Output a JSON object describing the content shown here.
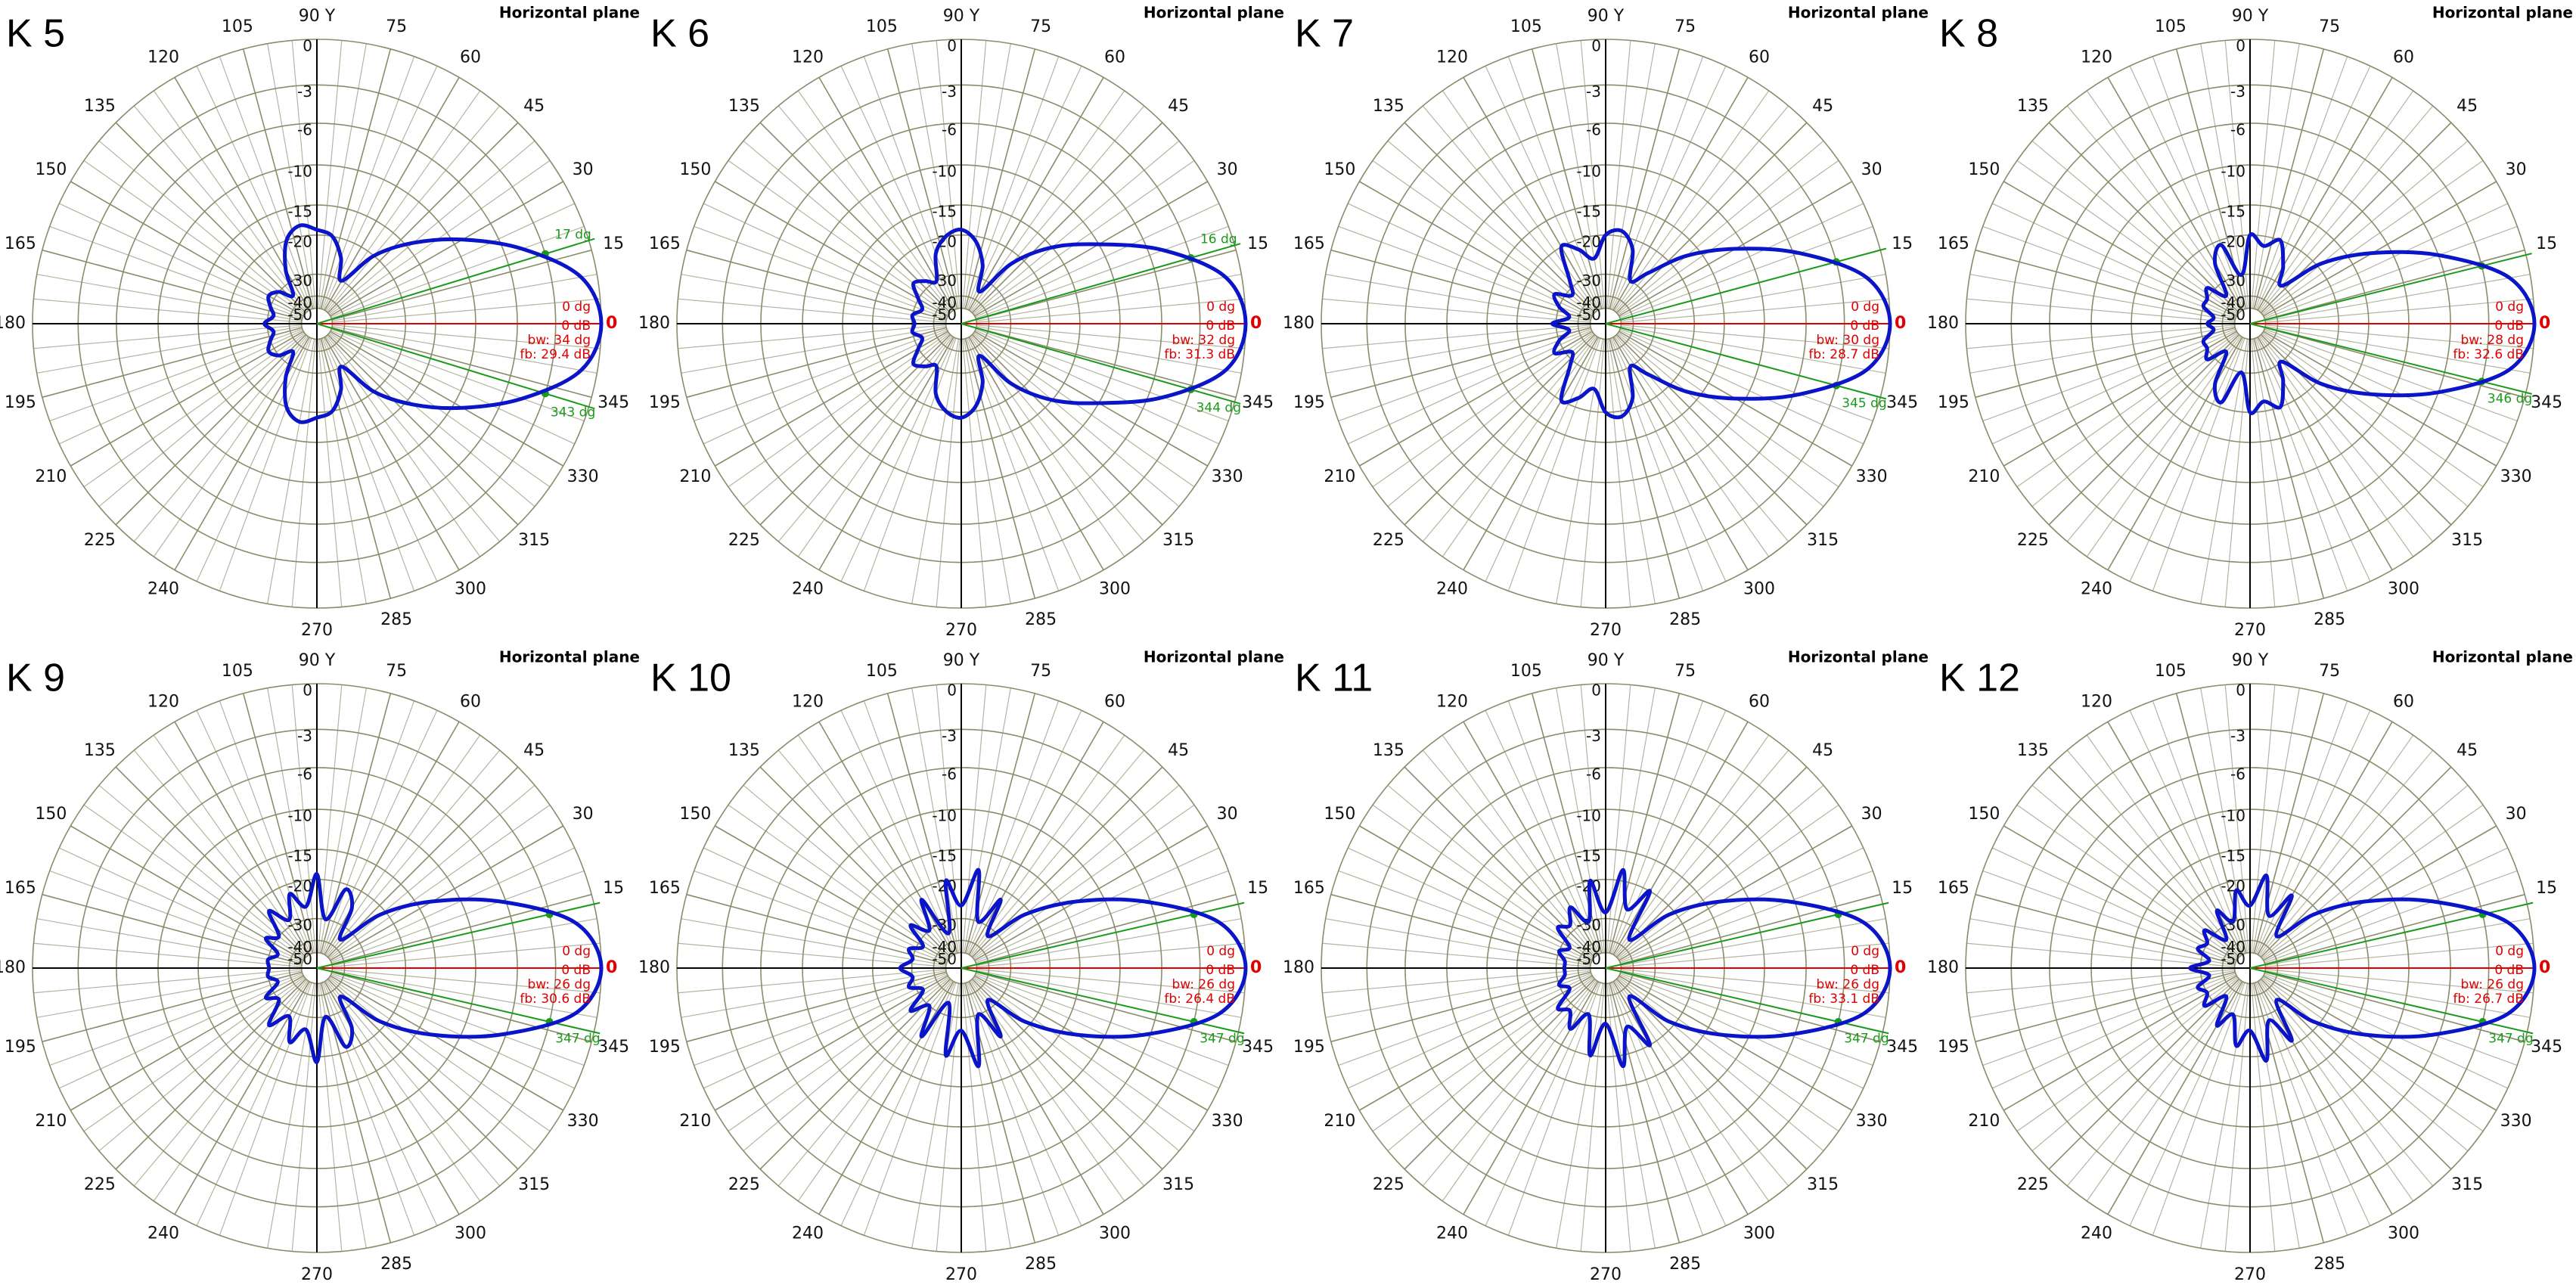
{
  "chart_data": [
    {
      "type": "polar",
      "title": "K 5",
      "subtitle": "Horizontal plane",
      "radial_scale": "arrl-log",
      "color": "#0a14c8",
      "theta": [
        0,
        10,
        20,
        30,
        40,
        50,
        60,
        70,
        80,
        90,
        100,
        110,
        120,
        130,
        140,
        150,
        160,
        170,
        180,
        190,
        200,
        210,
        220,
        230,
        240,
        250,
        260,
        270,
        280,
        290,
        300,
        310,
        320,
        330,
        340,
        350
      ],
      "values": [
        0,
        -1,
        -4.5,
        -9,
        -14,
        -20,
        -30,
        -24,
        -20,
        -19,
        -18,
        -20,
        -26,
        -35,
        -30,
        -28,
        -30,
        -32,
        -29,
        -32,
        -30,
        -28,
        -30,
        -35,
        -26,
        -20,
        -18,
        -19,
        -20,
        -24,
        -30,
        -20,
        -14,
        -9,
        -4.5,
        -1
      ],
      "rticks": [
        0,
        -3,
        -6,
        -10,
        -15,
        -20,
        -30,
        -40,
        -50
      ],
      "thetaticks": [
        {
          "value": 0,
          "label": "0"
        },
        15,
        30,
        45,
        60,
        75,
        {
          "value": 90,
          "label": "90 Y"
        },
        105,
        120,
        135,
        150,
        165,
        180,
        195,
        210,
        225,
        240,
        270,
        285,
        300,
        315,
        330,
        345
      ],
      "beam_edges": [
        17,
        343
      ],
      "beam_edge_labels": [
        "17 dg",
        "343 dg"
      ],
      "annotations": [
        "0 dg",
        "0 dB",
        "bw: 34 dg",
        "fb: 29.4 dB"
      ]
    },
    {
      "type": "polar",
      "title": "K 6",
      "subtitle": "Horizontal plane",
      "radial_scale": "arrl-log",
      "color": "#0a14c8",
      "theta": [
        0,
        10,
        20,
        30,
        40,
        50,
        60,
        70,
        80,
        90,
        100,
        110,
        120,
        130,
        140,
        150,
        160,
        170,
        180,
        190,
        200,
        210,
        220,
        230,
        240,
        250,
        260,
        270,
        280,
        290,
        300,
        310,
        320,
        330,
        340,
        350
      ],
      "values": [
        0,
        -1,
        -4.8,
        -10,
        -15,
        -22,
        -35,
        -26,
        -21,
        -19,
        -20,
        -23,
        -30,
        -28,
        -26,
        -30,
        -33,
        -30,
        -31,
        -30,
        -33,
        -30,
        -26,
        -28,
        -30,
        -23,
        -20,
        -19,
        -21,
        -26,
        -35,
        -22,
        -15,
        -10,
        -4.8,
        -1
      ],
      "rticks": [
        0,
        -3,
        -6,
        -10,
        -15,
        -20,
        -30,
        -40,
        -50
      ],
      "thetaticks": [
        {
          "value": 0,
          "label": "0"
        },
        15,
        30,
        45,
        60,
        75,
        {
          "value": 90,
          "label": "90 Y"
        },
        105,
        120,
        135,
        150,
        165,
        180,
        195,
        210,
        225,
        240,
        270,
        285,
        300,
        315,
        330,
        345
      ],
      "beam_edges": [
        16,
        344
      ],
      "beam_edge_labels": [
        "16 dg",
        "344 dg"
      ],
      "annotations": [
        "0 dg",
        "0 dB",
        "bw: 32 dg",
        "fb: 31.3 dB"
      ]
    },
    {
      "type": "polar",
      "title": "K 7",
      "subtitle": "Horizontal plane",
      "radial_scale": "arrl-log",
      "color": "#0a14c8",
      "theta": [
        0,
        10,
        20,
        30,
        40,
        50,
        60,
        70,
        80,
        90,
        100,
        110,
        120,
        130,
        140,
        150,
        160,
        170,
        180,
        190,
        200,
        210,
        220,
        230,
        240,
        250,
        260,
        270,
        280,
        290,
        300,
        310,
        320,
        330,
        340,
        350
      ],
      "values": [
        0,
        -1.2,
        -5.5,
        -11,
        -17,
        -25,
        -30,
        -22,
        -19,
        -20,
        -25,
        -22,
        -20,
        -28,
        -32,
        -27,
        -30,
        -35,
        -28.7,
        -35,
        -30,
        -27,
        -32,
        -28,
        -20,
        -22,
        -25,
        -20,
        -19,
        -22,
        -30,
        -25,
        -17,
        -11,
        -5.5,
        -1.2
      ],
      "rticks": [
        0,
        -3,
        -6,
        -10,
        -15,
        -20,
        -30,
        -40,
        -50
      ],
      "thetaticks": [
        {
          "value": 0,
          "label": "0"
        },
        15,
        30,
        45,
        60,
        75,
        {
          "value": 90,
          "label": "90 Y"
        },
        105,
        120,
        135,
        150,
        165,
        180,
        195,
        210,
        225,
        240,
        270,
        285,
        300,
        315,
        330,
        345
      ],
      "beam_edges": [
        15,
        345
      ],
      "beam_edge_labels": [
        null,
        "345 dg"
      ],
      "annotations": [
        "0 dg",
        "0 dB",
        "bw: 30 dg",
        "fb: 28.7 dB"
      ]
    },
    {
      "type": "polar",
      "title": "K 8",
      "subtitle": "Horizontal plane",
      "radial_scale": "arrl-log",
      "color": "#0a14c8",
      "theta": [
        0,
        10,
        20,
        30,
        40,
        50,
        60,
        70,
        80,
        90,
        100,
        110,
        120,
        130,
        140,
        150,
        160,
        170,
        180,
        190,
        200,
        210,
        220,
        230,
        240,
        250,
        260,
        270,
        280,
        290,
        300,
        310,
        320,
        330,
        340,
        350
      ],
      "values": [
        0,
        -1.3,
        -6,
        -12,
        -19,
        -30,
        -25,
        -20,
        -22,
        -20,
        -30,
        -21,
        -24,
        -35,
        -28,
        -30,
        -30,
        -35,
        -32.6,
        -35,
        -30,
        -30,
        -28,
        -35,
        -24,
        -21,
        -30,
        -20,
        -22,
        -20,
        -25,
        -30,
        -19,
        -12,
        -6,
        -1.3
      ],
      "rticks": [
        0,
        -3,
        -6,
        -10,
        -15,
        -20,
        -30,
        -40,
        -50
      ],
      "thetaticks": [
        {
          "value": 0,
          "label": "0"
        },
        15,
        30,
        45,
        60,
        75,
        {
          "value": 90,
          "label": "90 Y"
        },
        105,
        120,
        135,
        150,
        165,
        180,
        195,
        210,
        225,
        240,
        270,
        285,
        300,
        315,
        330,
        345
      ],
      "beam_edges": [
        14,
        346
      ],
      "beam_edge_labels": [
        null,
        "346 dg"
      ],
      "annotations": [
        "0 dg",
        "0 dB",
        "bw: 28 dg",
        "fb: 32.6 dB"
      ]
    },
    {
      "type": "polar",
      "title": "K 9",
      "subtitle": "Horizontal plane",
      "radial_scale": "arrl-log",
      "color": "#0a14c8",
      "theta": [
        0,
        10,
        20,
        30,
        40,
        50,
        60,
        70,
        80,
        90,
        100,
        110,
        120,
        130,
        140,
        150,
        160,
        170,
        180,
        190,
        200,
        210,
        220,
        230,
        240,
        250,
        260,
        270,
        280,
        290,
        300,
        310,
        320,
        330,
        340,
        350
      ],
      "values": [
        0,
        -1.4,
        -6.5,
        -13,
        -21,
        -35,
        -24,
        -21,
        -30,
        -19,
        -26,
        -22,
        -28,
        -23,
        -30,
        -27,
        -33,
        -30,
        -30.6,
        -30,
        -33,
        -27,
        -30,
        -23,
        -28,
        -22,
        -26,
        -19,
        -30,
        -21,
        -24,
        -35,
        -21,
        -13,
        -6.5,
        -1.4
      ],
      "rticks": [
        0,
        -3,
        -6,
        -10,
        -15,
        -20,
        -30,
        -40,
        -50
      ],
      "thetaticks": [
        {
          "value": 0,
          "label": "0"
        },
        15,
        30,
        45,
        60,
        75,
        {
          "value": 90,
          "label": "90 Y"
        },
        105,
        120,
        135,
        150,
        165,
        180,
        195,
        210,
        225,
        240,
        270,
        285,
        300,
        315,
        330,
        345
      ],
      "beam_edges": [
        13,
        347
      ],
      "beam_edge_labels": [
        null,
        "347 dg"
      ],
      "annotations": [
        "0 dg",
        "0 dB",
        "bw: 26 dg",
        "fb: 30.6 dB"
      ]
    },
    {
      "type": "polar",
      "title": "K 10",
      "subtitle": "Horizontal plane",
      "radial_scale": "arrl-log",
      "color": "#0a14c8",
      "theta": [
        0,
        10,
        20,
        30,
        40,
        50,
        60,
        70,
        80,
        90,
        100,
        110,
        120,
        130,
        140,
        150,
        160,
        170,
        180,
        190,
        200,
        210,
        220,
        230,
        240,
        250,
        260,
        270,
        280,
        290,
        300,
        310,
        320,
        330,
        340,
        350
      ],
      "values": [
        0,
        -1.4,
        -6.5,
        -13,
        -21,
        -33,
        -22,
        -30,
        -18,
        -26,
        -20,
        -35,
        -22,
        -30,
        -25,
        -32,
        -28,
        -30,
        -26.4,
        -30,
        -28,
        -32,
        -25,
        -30,
        -22,
        -35,
        -20,
        -26,
        -18,
        -30,
        -22,
        -33,
        -21,
        -13,
        -6.5,
        -1.4
      ],
      "rticks": [
        0,
        -3,
        -6,
        -10,
        -15,
        -20,
        -30,
        -40,
        -50
      ],
      "thetaticks": [
        {
          "value": 0,
          "label": "0"
        },
        15,
        30,
        45,
        60,
        75,
        {
          "value": 90,
          "label": "90 Y"
        },
        105,
        120,
        135,
        150,
        165,
        180,
        195,
        210,
        225,
        240,
        270,
        285,
        300,
        315,
        330,
        345
      ],
      "beam_edges": [
        13,
        347
      ],
      "beam_edge_labels": [
        null,
        "347 dg"
      ],
      "annotations": [
        "0 dg",
        "0 dB",
        "bw: 26 dg",
        "fb: 26.4 dB"
      ]
    },
    {
      "type": "polar",
      "title": "K 11",
      "subtitle": "Horizontal plane",
      "radial_scale": "arrl-log",
      "color": "#0a14c8",
      "theta": [
        0,
        10,
        20,
        30,
        40,
        50,
        60,
        70,
        80,
        90,
        100,
        110,
        120,
        130,
        140,
        150,
        160,
        170,
        180,
        190,
        200,
        210,
        220,
        230,
        240,
        250,
        260,
        270,
        280,
        290,
        300,
        310,
        320,
        330,
        340,
        350
      ],
      "values": [
        0,
        -1.4,
        -6.5,
        -13,
        -21,
        -35,
        -20,
        -26,
        -18,
        -28,
        -20,
        -30,
        -24,
        -28,
        -26,
        -33,
        -30,
        -33,
        -33.1,
        -33,
        -30,
        -33,
        -26,
        -28,
        -24,
        -30,
        -20,
        -28,
        -18,
        -26,
        -20,
        -35,
        -21,
        -13,
        -6.5,
        -1.4
      ],
      "rticks": [
        0,
        -3,
        -6,
        -10,
        -15,
        -20,
        -30,
        -40,
        -50
      ],
      "thetaticks": [
        {
          "value": 0,
          "label": "0"
        },
        15,
        30,
        45,
        60,
        75,
        {
          "value": 90,
          "label": "90 Y"
        },
        105,
        120,
        135,
        150,
        165,
        180,
        195,
        210,
        225,
        240,
        270,
        285,
        300,
        315,
        330,
        345
      ],
      "beam_edges": [
        13,
        347
      ],
      "beam_edge_labels": [
        null,
        "347 dg"
      ],
      "annotations": [
        "0 dg",
        "0 dB",
        "bw: 26 dg",
        "fb: 33.1 dB"
      ]
    },
    {
      "type": "polar",
      "title": "K 12",
      "subtitle": "Horizontal plane",
      "radial_scale": "arrl-log",
      "color": "#0a14c8",
      "theta": [
        0,
        10,
        20,
        30,
        40,
        50,
        60,
        70,
        80,
        90,
        100,
        110,
        120,
        130,
        140,
        150,
        160,
        170,
        180,
        190,
        200,
        210,
        220,
        230,
        240,
        250,
        260,
        270,
        280,
        290,
        300,
        310,
        320,
        330,
        340,
        350
      ],
      "values": [
        0,
        -1.4,
        -6.5,
        -13,
        -21,
        -33,
        -21,
        -28,
        -19,
        -26,
        -22,
        -30,
        -25,
        -35,
        -27,
        -30,
        -28,
        -33,
        -26.7,
        -33,
        -28,
        -30,
        -27,
        -35,
        -25,
        -30,
        -22,
        -26,
        -19,
        -28,
        -21,
        -33,
        -21,
        -13,
        -6.5,
        -1.4
      ],
      "rticks": [
        0,
        -3,
        -6,
        -10,
        -15,
        -20,
        -30,
        -40,
        -50
      ],
      "thetaticks": [
        {
          "value": 0,
          "label": "0"
        },
        15,
        30,
        45,
        60,
        75,
        {
          "value": 90,
          "label": "90 Y"
        },
        105,
        120,
        135,
        150,
        165,
        180,
        195,
        210,
        225,
        240,
        270,
        285,
        300,
        315,
        330,
        345
      ],
      "beam_edges": [
        13,
        347
      ],
      "beam_edge_labels": [
        null,
        "347 dg"
      ],
      "annotations": [
        "0 dg",
        "0 dB",
        "bw: 26 dg",
        "fb: 26.7 dB"
      ]
    }
  ]
}
